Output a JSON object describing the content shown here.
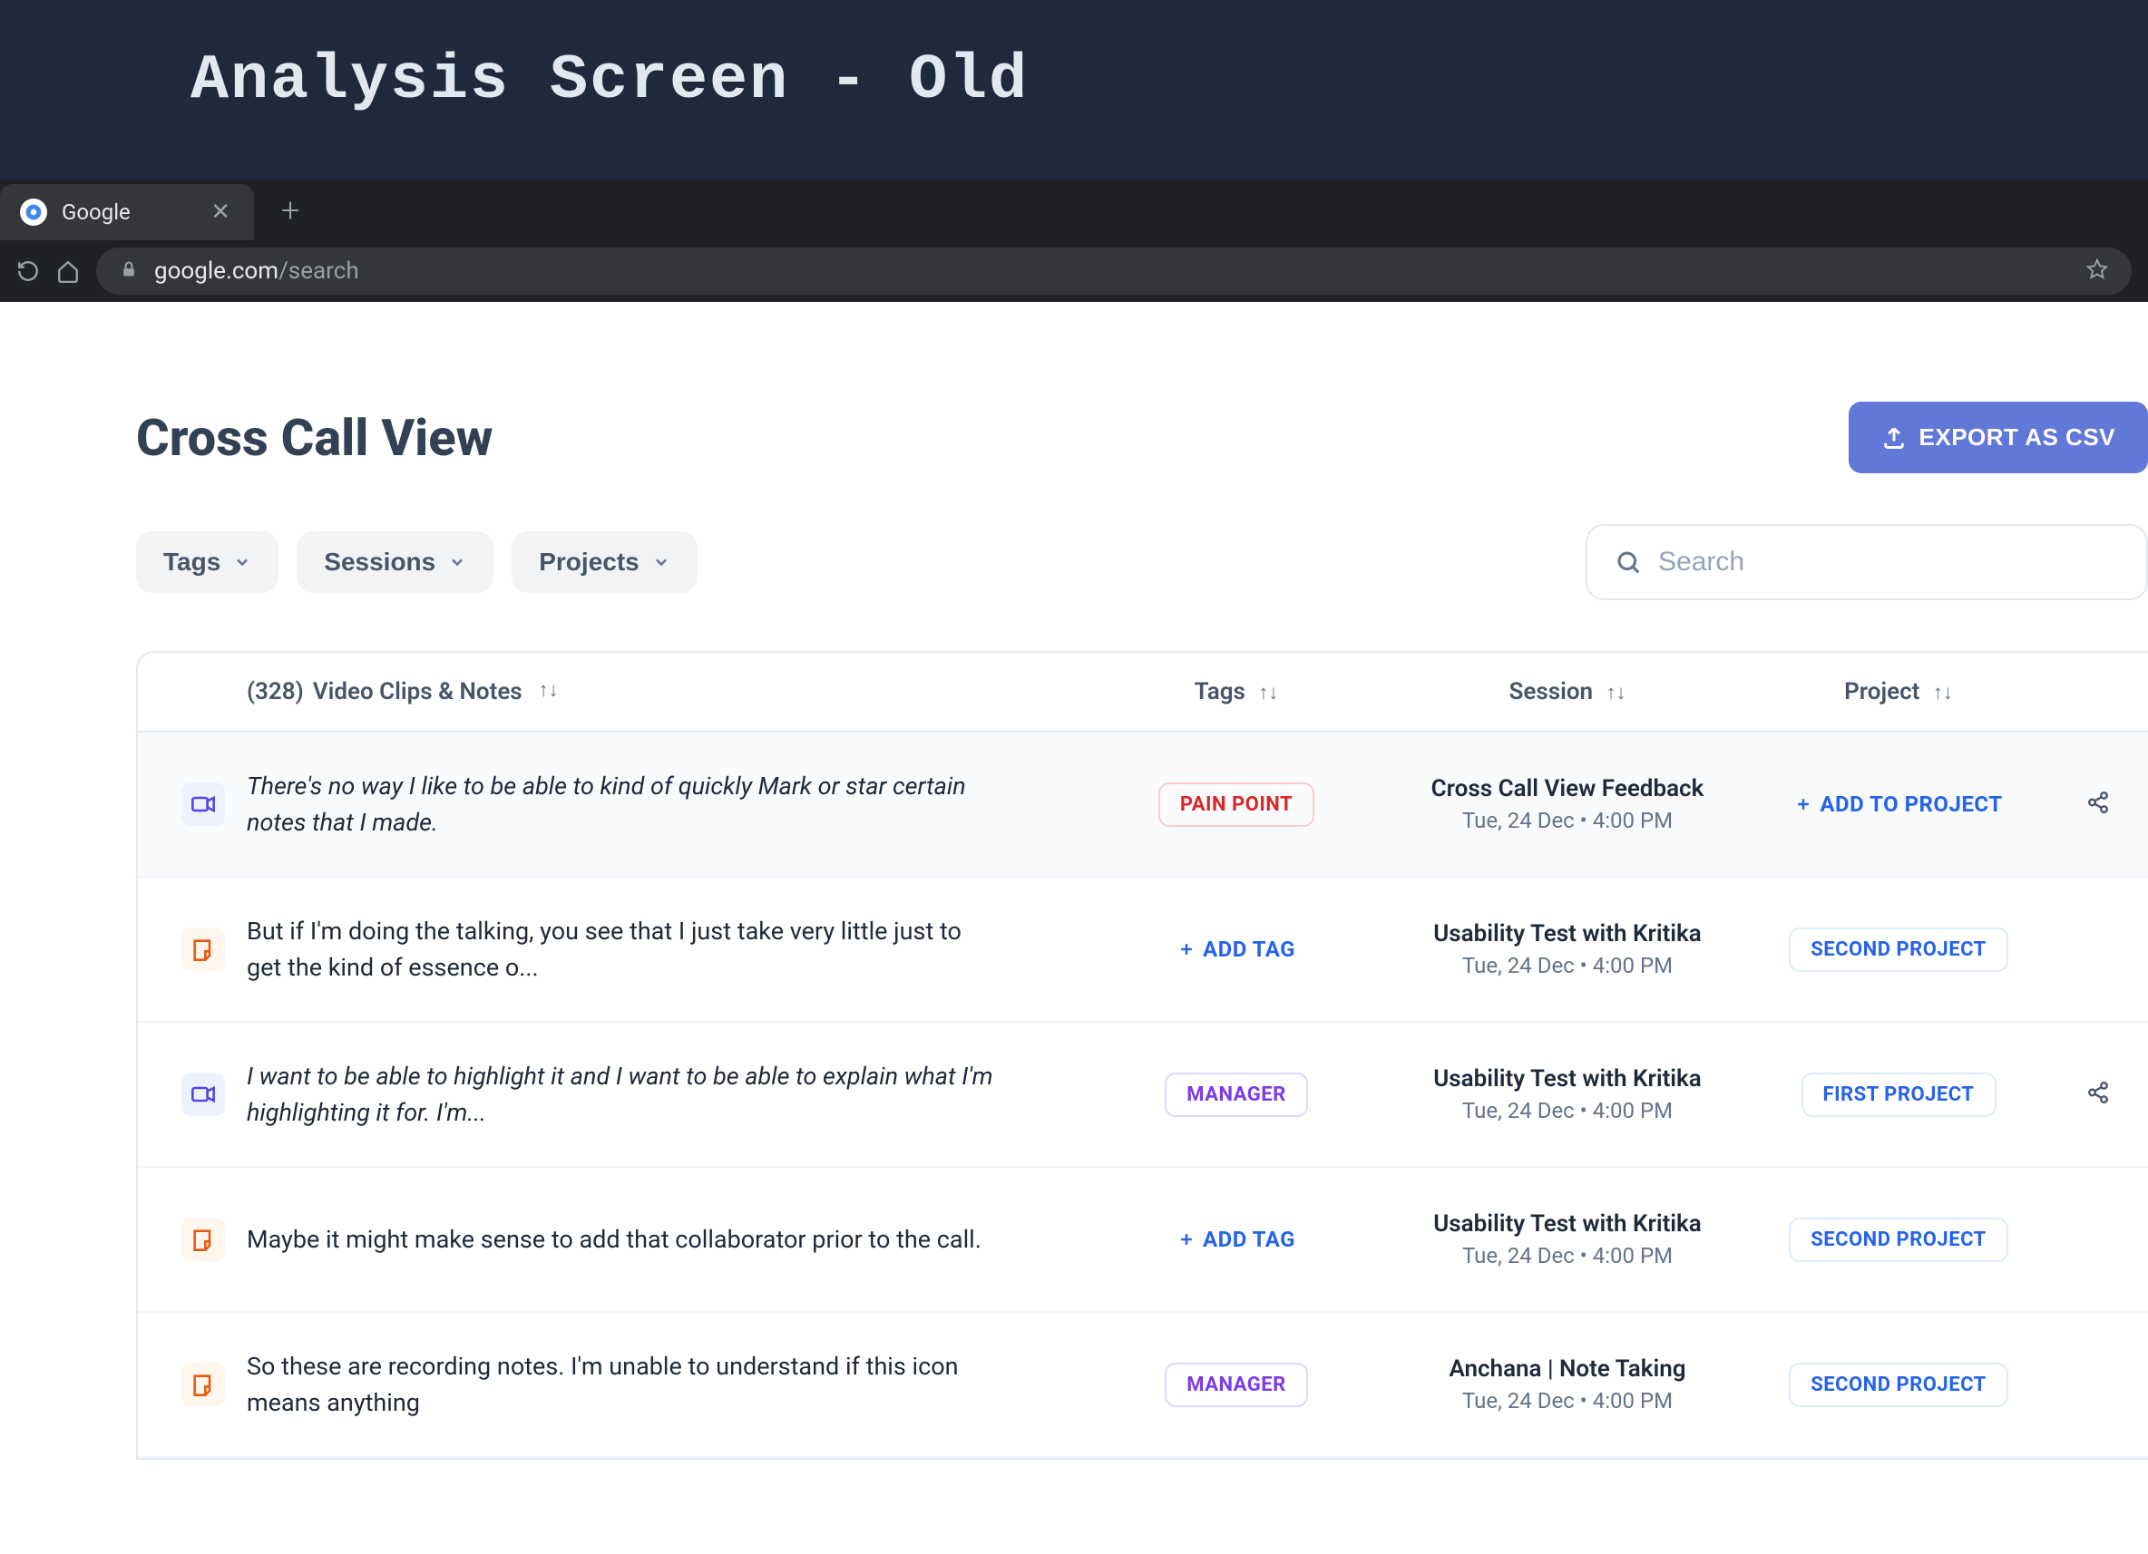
{
  "top_header": {
    "title": "Analysis Screen - Old"
  },
  "browser": {
    "tab_title": "Google",
    "url_host": "google.com",
    "url_path": "/search"
  },
  "page": {
    "title": "Cross Call View",
    "export_label": "EXPORT AS CSV"
  },
  "filters": {
    "tags": "Tags",
    "sessions": "Sessions",
    "projects": "Projects",
    "search_placeholder": "Search"
  },
  "table": {
    "count": "(328)",
    "header_notes": "Video Clips & Notes",
    "header_tags": "Tags",
    "header_session": "Session",
    "header_project": "Project",
    "add_tag_label": "ADD TAG",
    "add_project_label": "ADD TO PROJECT",
    "rows": [
      {
        "type": "video",
        "italic": true,
        "highlighted": true,
        "text": "There's no way I like to be able to kind of quickly Mark or star certain notes that I made.",
        "tag": "PAIN POINT",
        "tag_style": "pain",
        "session_title": "Cross Call View Feedback",
        "session_time": "Tue, 24 Dec • 4:00 PM",
        "project": null,
        "show_share": true
      },
      {
        "type": "note",
        "italic": false,
        "highlighted": false,
        "text": "But if I'm doing the talking, you see that I just take very little just to get the kind of essence o...",
        "tag": null,
        "session_title": "Usability Test with Kritika",
        "session_time": "Tue, 24 Dec • 4:00 PM",
        "project": "SECOND PROJECT",
        "show_share": false
      },
      {
        "type": "video",
        "italic": true,
        "highlighted": false,
        "text": "I want to be able to highlight it and I want to be able to explain what I'm highlighting it for. I'm...",
        "tag": "MANAGER",
        "tag_style": "manager",
        "session_title": "Usability Test with Kritika",
        "session_time": "Tue, 24 Dec • 4:00 PM",
        "project": "FIRST PROJECT",
        "show_share": true
      },
      {
        "type": "note",
        "italic": false,
        "highlighted": false,
        "text": "Maybe it might make sense to add that collaborator prior to the call.",
        "tag": null,
        "session_title": "Usability Test with Kritika",
        "session_time": "Tue, 24 Dec • 4:00 PM",
        "project": "SECOND PROJECT",
        "show_share": false
      },
      {
        "type": "note",
        "italic": false,
        "highlighted": false,
        "text": "So these are recording notes. I'm unable to understand if this icon means anything",
        "tag": "MANAGER",
        "tag_style": "manager",
        "session_title": "Anchana | Note Taking",
        "session_time": "Tue, 24 Dec • 4:00 PM",
        "project": "SECOND PROJECT",
        "show_share": false
      }
    ]
  },
  "colors": {
    "header_bg": "#1e293b",
    "export_btn": "#6078d8",
    "pain_point": "#dc2626",
    "manager": "#7c3aed",
    "link_blue": "#2563eb"
  }
}
